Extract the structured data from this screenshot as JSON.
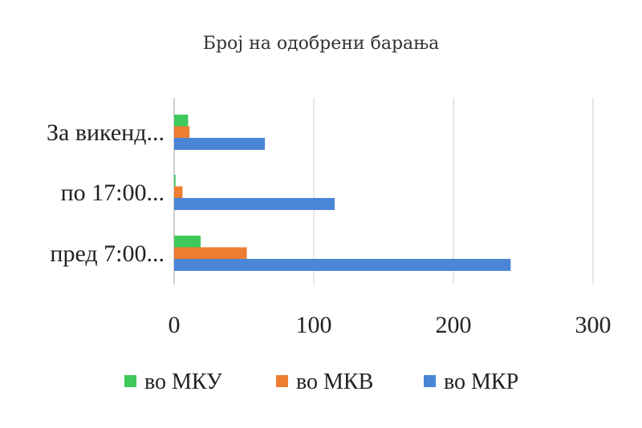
{
  "chart_data": {
    "type": "bar",
    "orientation": "horizontal",
    "title": "Број на одобрени барања",
    "xlabel": "",
    "ylabel": "",
    "categories": [
      "За викенд...",
      "по 17:00...",
      "пред 7:00..."
    ],
    "series": [
      {
        "name": "во МКУ",
        "color": "#3ec95b",
        "values": [
          10,
          1,
          19
        ]
      },
      {
        "name": "во МКВ",
        "color": "#ed7d31",
        "values": [
          11,
          6,
          52
        ]
      },
      {
        "name": "во МКР",
        "color": "#4a86d6",
        "values": [
          65,
          115,
          241
        ]
      }
    ],
    "xlim": [
      0,
      300
    ],
    "ticks": [
      "0",
      "100",
      "200",
      "300"
    ],
    "grid": true,
    "legend": "bottom"
  }
}
